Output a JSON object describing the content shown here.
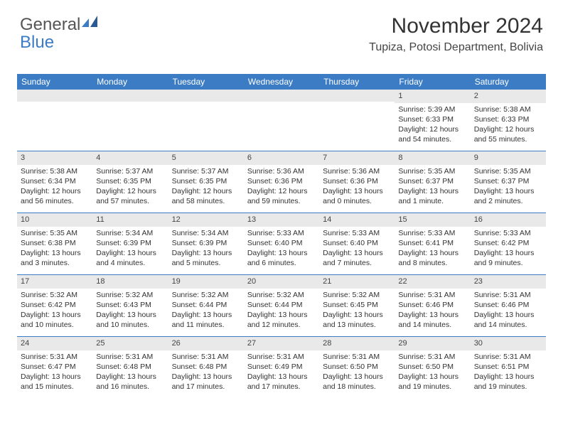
{
  "logo": {
    "word1": "General",
    "word2": "Blue"
  },
  "title": "November 2024",
  "location": "Tupiza, Potosi Department, Bolivia",
  "header_color": "#3b7cc4",
  "row_divider_color": "#3b7cc4",
  "daynum_bg": "#e9e9e9",
  "text_color": "#333333",
  "background_color": "#ffffff",
  "title_fontsize": 30,
  "daynames": [
    "Sunday",
    "Monday",
    "Tuesday",
    "Wednesday",
    "Thursday",
    "Friday",
    "Saturday"
  ],
  "weeks": [
    [
      {
        "n": "",
        "lines": []
      },
      {
        "n": "",
        "lines": []
      },
      {
        "n": "",
        "lines": []
      },
      {
        "n": "",
        "lines": []
      },
      {
        "n": "",
        "lines": []
      },
      {
        "n": "1",
        "lines": [
          "Sunrise: 5:39 AM",
          "Sunset: 6:33 PM",
          "Daylight: 12 hours and 54 minutes."
        ]
      },
      {
        "n": "2",
        "lines": [
          "Sunrise: 5:38 AM",
          "Sunset: 6:33 PM",
          "Daylight: 12 hours and 55 minutes."
        ]
      }
    ],
    [
      {
        "n": "3",
        "lines": [
          "Sunrise: 5:38 AM",
          "Sunset: 6:34 PM",
          "Daylight: 12 hours and 56 minutes."
        ]
      },
      {
        "n": "4",
        "lines": [
          "Sunrise: 5:37 AM",
          "Sunset: 6:35 PM",
          "Daylight: 12 hours and 57 minutes."
        ]
      },
      {
        "n": "5",
        "lines": [
          "Sunrise: 5:37 AM",
          "Sunset: 6:35 PM",
          "Daylight: 12 hours and 58 minutes."
        ]
      },
      {
        "n": "6",
        "lines": [
          "Sunrise: 5:36 AM",
          "Sunset: 6:36 PM",
          "Daylight: 12 hours and 59 minutes."
        ]
      },
      {
        "n": "7",
        "lines": [
          "Sunrise: 5:36 AM",
          "Sunset: 6:36 PM",
          "Daylight: 13 hours and 0 minutes."
        ]
      },
      {
        "n": "8",
        "lines": [
          "Sunrise: 5:35 AM",
          "Sunset: 6:37 PM",
          "Daylight: 13 hours and 1 minute."
        ]
      },
      {
        "n": "9",
        "lines": [
          "Sunrise: 5:35 AM",
          "Sunset: 6:37 PM",
          "Daylight: 13 hours and 2 minutes."
        ]
      }
    ],
    [
      {
        "n": "10",
        "lines": [
          "Sunrise: 5:35 AM",
          "Sunset: 6:38 PM",
          "Daylight: 13 hours and 3 minutes."
        ]
      },
      {
        "n": "11",
        "lines": [
          "Sunrise: 5:34 AM",
          "Sunset: 6:39 PM",
          "Daylight: 13 hours and 4 minutes."
        ]
      },
      {
        "n": "12",
        "lines": [
          "Sunrise: 5:34 AM",
          "Sunset: 6:39 PM",
          "Daylight: 13 hours and 5 minutes."
        ]
      },
      {
        "n": "13",
        "lines": [
          "Sunrise: 5:33 AM",
          "Sunset: 6:40 PM",
          "Daylight: 13 hours and 6 minutes."
        ]
      },
      {
        "n": "14",
        "lines": [
          "Sunrise: 5:33 AM",
          "Sunset: 6:40 PM",
          "Daylight: 13 hours and 7 minutes."
        ]
      },
      {
        "n": "15",
        "lines": [
          "Sunrise: 5:33 AM",
          "Sunset: 6:41 PM",
          "Daylight: 13 hours and 8 minutes."
        ]
      },
      {
        "n": "16",
        "lines": [
          "Sunrise: 5:33 AM",
          "Sunset: 6:42 PM",
          "Daylight: 13 hours and 9 minutes."
        ]
      }
    ],
    [
      {
        "n": "17",
        "lines": [
          "Sunrise: 5:32 AM",
          "Sunset: 6:42 PM",
          "Daylight: 13 hours and 10 minutes."
        ]
      },
      {
        "n": "18",
        "lines": [
          "Sunrise: 5:32 AM",
          "Sunset: 6:43 PM",
          "Daylight: 13 hours and 10 minutes."
        ]
      },
      {
        "n": "19",
        "lines": [
          "Sunrise: 5:32 AM",
          "Sunset: 6:44 PM",
          "Daylight: 13 hours and 11 minutes."
        ]
      },
      {
        "n": "20",
        "lines": [
          "Sunrise: 5:32 AM",
          "Sunset: 6:44 PM",
          "Daylight: 13 hours and 12 minutes."
        ]
      },
      {
        "n": "21",
        "lines": [
          "Sunrise: 5:32 AM",
          "Sunset: 6:45 PM",
          "Daylight: 13 hours and 13 minutes."
        ]
      },
      {
        "n": "22",
        "lines": [
          "Sunrise: 5:31 AM",
          "Sunset: 6:46 PM",
          "Daylight: 13 hours and 14 minutes."
        ]
      },
      {
        "n": "23",
        "lines": [
          "Sunrise: 5:31 AM",
          "Sunset: 6:46 PM",
          "Daylight: 13 hours and 14 minutes."
        ]
      }
    ],
    [
      {
        "n": "24",
        "lines": [
          "Sunrise: 5:31 AM",
          "Sunset: 6:47 PM",
          "Daylight: 13 hours and 15 minutes."
        ]
      },
      {
        "n": "25",
        "lines": [
          "Sunrise: 5:31 AM",
          "Sunset: 6:48 PM",
          "Daylight: 13 hours and 16 minutes."
        ]
      },
      {
        "n": "26",
        "lines": [
          "Sunrise: 5:31 AM",
          "Sunset: 6:48 PM",
          "Daylight: 13 hours and 17 minutes."
        ]
      },
      {
        "n": "27",
        "lines": [
          "Sunrise: 5:31 AM",
          "Sunset: 6:49 PM",
          "Daylight: 13 hours and 17 minutes."
        ]
      },
      {
        "n": "28",
        "lines": [
          "Sunrise: 5:31 AM",
          "Sunset: 6:50 PM",
          "Daylight: 13 hours and 18 minutes."
        ]
      },
      {
        "n": "29",
        "lines": [
          "Sunrise: 5:31 AM",
          "Sunset: 6:50 PM",
          "Daylight: 13 hours and 19 minutes."
        ]
      },
      {
        "n": "30",
        "lines": [
          "Sunrise: 5:31 AM",
          "Sunset: 6:51 PM",
          "Daylight: 13 hours and 19 minutes."
        ]
      }
    ]
  ]
}
